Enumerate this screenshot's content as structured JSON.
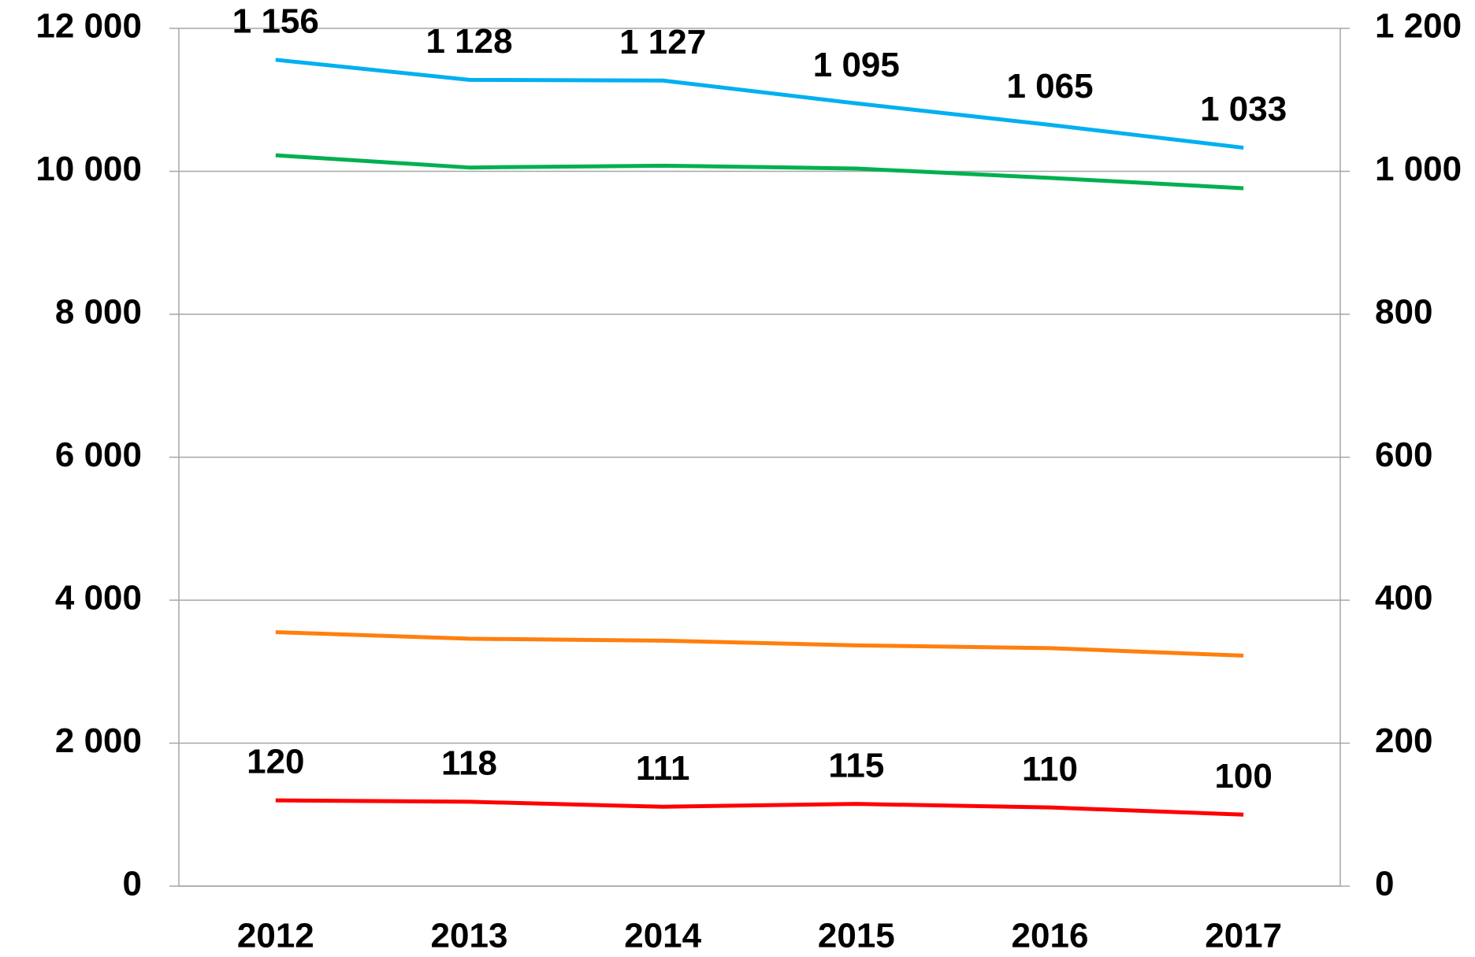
{
  "chart_data": {
    "type": "line",
    "categories": [
      "2012",
      "2013",
      "2014",
      "2015",
      "2016",
      "2017"
    ],
    "series": [
      {
        "color": "#00b0f0",
        "axis": "y2",
        "values": [
          1156,
          1128,
          1127,
          1095,
          1065,
          1033
        ],
        "value_labels": [
          "1 156",
          "1 128",
          "1 127",
          "1 095",
          "1 065",
          "1 033"
        ]
      },
      {
        "color": "#00b050",
        "values": [
          10224,
          10053,
          10079,
          10039,
          9908,
          9763
        ]
      },
      {
        "color": "#ff7f0e",
        "values": [
          3553,
          3461,
          3434,
          3368,
          3329,
          3224
        ]
      },
      {
        "color": "#ff0000",
        "axis": "y2",
        "values": [
          120,
          118,
          111,
          115,
          110,
          100
        ]
      }
    ],
    "ylim": [
      0,
      12000
    ],
    "yticks": [
      0,
      {
        "value": 2000,
        "label": "2 000"
      },
      {
        "value": 4000,
        "label": "4 000"
      },
      {
        "value": 6000,
        "label": "6 000"
      },
      {
        "value": 8000,
        "label": "8 000"
      },
      {
        "value": 10000,
        "label": "10 000"
      },
      {
        "value": 12000,
        "label": "12 000"
      }
    ],
    "y2lim": [
      0,
      1200
    ],
    "y2ticks": [
      0,
      200,
      400,
      600,
      800,
      {
        "value": 1000,
        "label": "1 000"
      },
      {
        "value": 1200,
        "label": "1 200"
      }
    ],
    "grid": true
  }
}
